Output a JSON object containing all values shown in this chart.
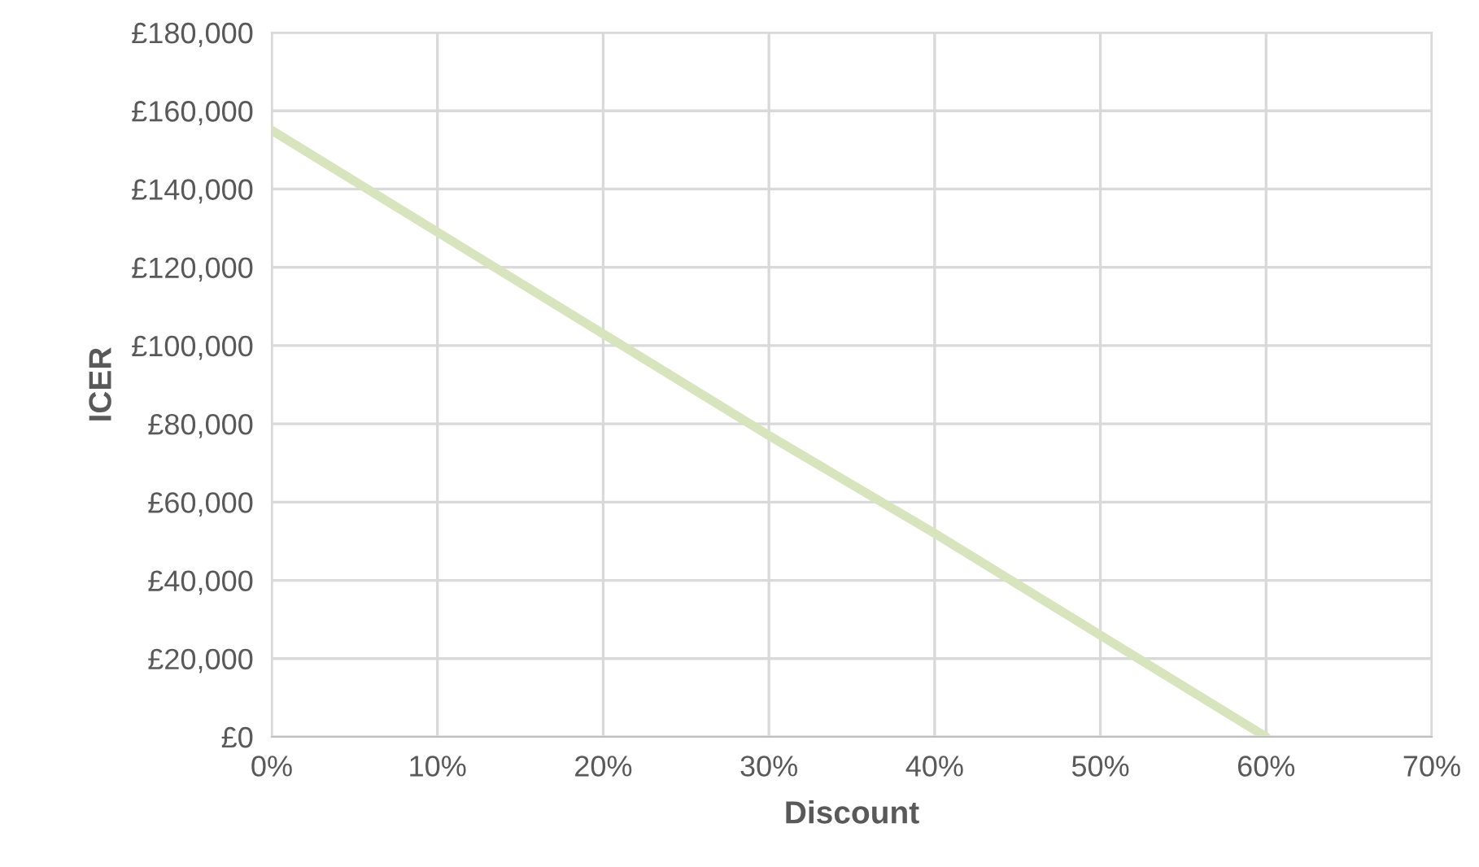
{
  "chart_data": {
    "type": "line",
    "xlabel": "Discount",
    "ylabel": "ICER",
    "x": [
      0,
      10,
      20,
      30,
      40,
      50,
      60
    ],
    "series": [
      {
        "color": "#d7e4bd",
        "values": [
          155000,
          129000,
          103000,
          77000,
          52000,
          26000,
          0
        ]
      }
    ],
    "xlim": [
      0,
      70
    ],
    "xticks": [
      {
        "value": 0,
        "label": "0%"
      },
      {
        "value": 10,
        "label": "10%"
      },
      {
        "value": 20,
        "label": "20%"
      },
      {
        "value": 30,
        "label": "30%"
      },
      {
        "value": 40,
        "label": "40%"
      },
      {
        "value": 50,
        "label": "50%"
      },
      {
        "value": 60,
        "label": "60%"
      },
      {
        "value": 70,
        "label": "70%"
      }
    ],
    "ylim": [
      0,
      180000
    ],
    "yticks": [
      {
        "value": 0,
        "label": "£0"
      },
      {
        "value": 20000,
        "label": "£20,000"
      },
      {
        "value": 40000,
        "label": "£40,000"
      },
      {
        "value": 60000,
        "label": "£60,000"
      },
      {
        "value": 80000,
        "label": "£80,000"
      },
      {
        "value": 100000,
        "label": "£100,000"
      },
      {
        "value": 120000,
        "label": "£120,000"
      },
      {
        "value": 140000,
        "label": "£140,000"
      },
      {
        "value": 160000,
        "label": "£160,000"
      },
      {
        "value": 180000,
        "label": "£180,000"
      }
    ],
    "grid": true,
    "line_style": "solid"
  }
}
